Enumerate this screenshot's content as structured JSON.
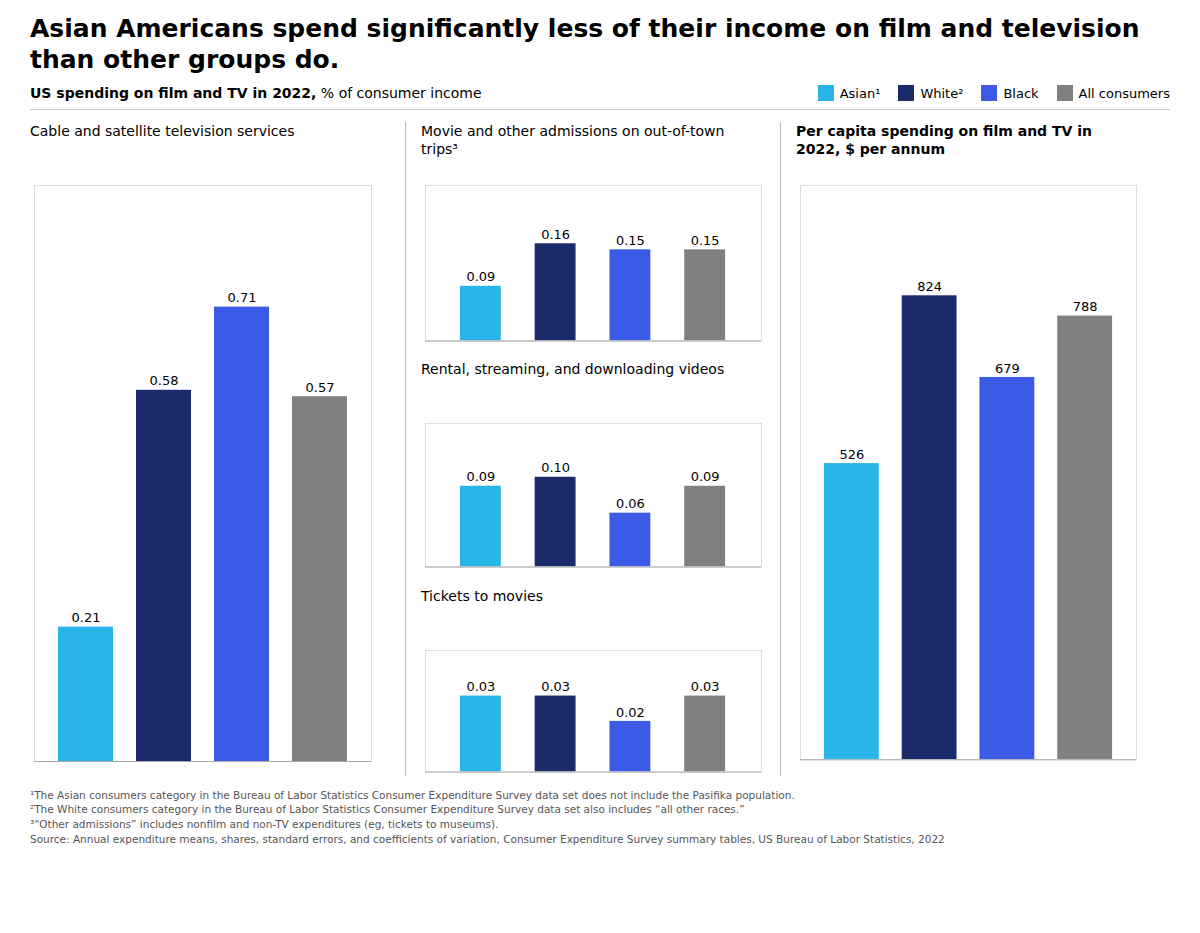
{
  "title": "Asian Americans spend significantly less of their income on film and television than other groups do.",
  "subtitle": "US spending on film and TV in 2022, % of consumer income",
  "legend": "top",
  "notes": [
    "¹The Asian consumers category in the Bureau of Labor Statistics Consumer Expenditure Survey data set does not include the Pasifika population.",
    "²The White consumers category in the Bureau of Labor Statistics Consumer Expenditure Survey data set also includes “all other races.”",
    "³“Other admissions” includes nonfilm and non-TV expenditures (eg, tickets to museums).",
    "Source: Annual expenditure means, shares, standard errors, and coefficients of variation, Consumer Expenditure Survey summary tables, US Bureau of Labor Statistics, 2022"
  ],
  "chart_data": [
    {
      "type": "bar",
      "title": "Cable and satellite television services",
      "categories": [
        "Asian¹",
        "White²",
        "Black",
        "All consumers"
      ],
      "values": [
        0.21,
        0.58,
        0.71,
        0.57
      ],
      "value_labels": [
        "0.21",
        "0.58",
        "0.71",
        "0.57"
      ],
      "colors": [
        "#29B5E8",
        "#1B2A6B",
        "#3B5BE6",
        "#808080"
      ],
      "ylim": [
        0,
        0.9
      ],
      "data_labels": true,
      "tick_labels": false,
      "grid": false
    },
    {
      "type": "bar",
      "title": "Movie and other admissions on out-of-town trips³",
      "categories": [
        "Asian¹",
        "White²",
        "Black",
        "All consumers"
      ],
      "values": [
        0.09,
        0.16,
        0.15,
        0.15
      ],
      "value_labels": [
        "0.09",
        "0.16",
        "0.15",
        "0.15"
      ],
      "colors": [
        "#29B5E8",
        "#1B2A6B",
        "#3B5BE6",
        "#808080"
      ],
      "ylim": [
        0,
        0.256
      ],
      "data_labels": true,
      "tick_labels": false,
      "grid": false
    },
    {
      "type": "bar",
      "title": "Rental, streaming, and downloading videos",
      "categories": [
        "Asian¹",
        "White²",
        "Black",
        "All consumers"
      ],
      "values": [
        0.09,
        0.1,
        0.06,
        0.09
      ],
      "value_labels": [
        "0.09",
        "0.10",
        "0.06",
        "0.09"
      ],
      "colors": [
        "#29B5E8",
        "#1B2A6B",
        "#3B5BE6",
        "#808080"
      ],
      "ylim": [
        0,
        0.16
      ],
      "data_labels": true,
      "tick_labels": false,
      "grid": false
    },
    {
      "type": "bar",
      "title": "Tickets to movies",
      "categories": [
        "Asian¹",
        "White²",
        "Black",
        "All consumers"
      ],
      "values": [
        0.03,
        0.03,
        0.02,
        0.03
      ],
      "value_labels": [
        "0.03",
        "0.03",
        "0.02",
        "0.03"
      ],
      "colors": [
        "#29B5E8",
        "#1B2A6B",
        "#3B5BE6",
        "#808080"
      ],
      "ylim": [
        0,
        0.048
      ],
      "data_labels": true,
      "tick_labels": false,
      "grid": false
    },
    {
      "type": "bar",
      "title": "Per capita spending on film and TV in 2022, $ per annum",
      "categories": [
        "Asian¹",
        "White²",
        "Black",
        "All consumers"
      ],
      "values": [
        526,
        824,
        679,
        788
      ],
      "colors": [
        "#29B5E8",
        "#1B2A6B",
        "#3B5BE6",
        "#808080"
      ],
      "ylim": [
        0,
        1020
      ],
      "data_labels": true,
      "tick_labels": false,
      "grid": false
    }
  ]
}
